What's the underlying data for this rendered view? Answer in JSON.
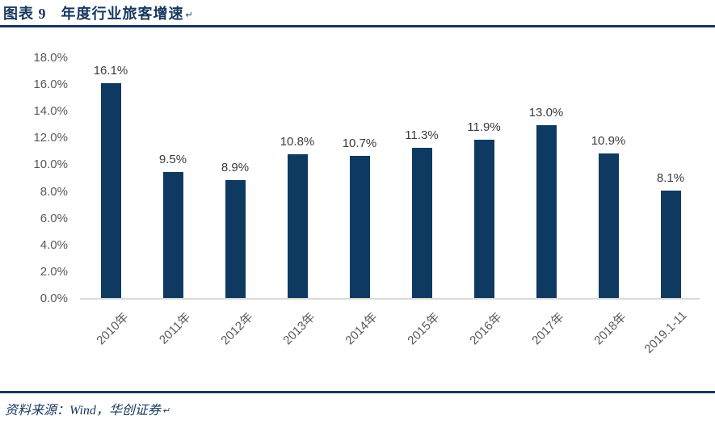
{
  "header": {
    "figure_label": "图表 9",
    "title": "年度行业旅客增速",
    "return_mark": "↵"
  },
  "footer": {
    "source": "资料来源：Wind，华创证券",
    "return_mark": "↵"
  },
  "colors": {
    "navy": "#17375E",
    "bar": "#0E3A62",
    "axis_text": "#595959",
    "data_label": "#3B3B3B",
    "baseline": "#D9D9D9"
  },
  "chart_data": {
    "type": "bar",
    "title": "年度行业旅客增速",
    "categories": [
      "2010年",
      "2011年",
      "2012年",
      "2013年",
      "2014年",
      "2015年",
      "2016年",
      "2017年",
      "2018年",
      "2019.1-11"
    ],
    "values": [
      16.1,
      9.5,
      8.9,
      10.8,
      10.7,
      11.3,
      11.9,
      13.0,
      10.9,
      8.1
    ],
    "data_labels": [
      "16.1%",
      "9.5%",
      "8.9%",
      "10.8%",
      "10.7%",
      "11.3%",
      "11.9%",
      "13.0%",
      "10.9%",
      "8.1%"
    ],
    "ylabel": "",
    "xlabel": "",
    "ylim": [
      0,
      18
    ],
    "ytick_step": 2,
    "ytick_labels": [
      "0.0%",
      "2.0%",
      "4.0%",
      "6.0%",
      "8.0%",
      "10.0%",
      "12.0%",
      "14.0%",
      "16.0%",
      "18.0%"
    ],
    "grid": false,
    "legend": "none",
    "x_label_rotation_deg": 45
  }
}
